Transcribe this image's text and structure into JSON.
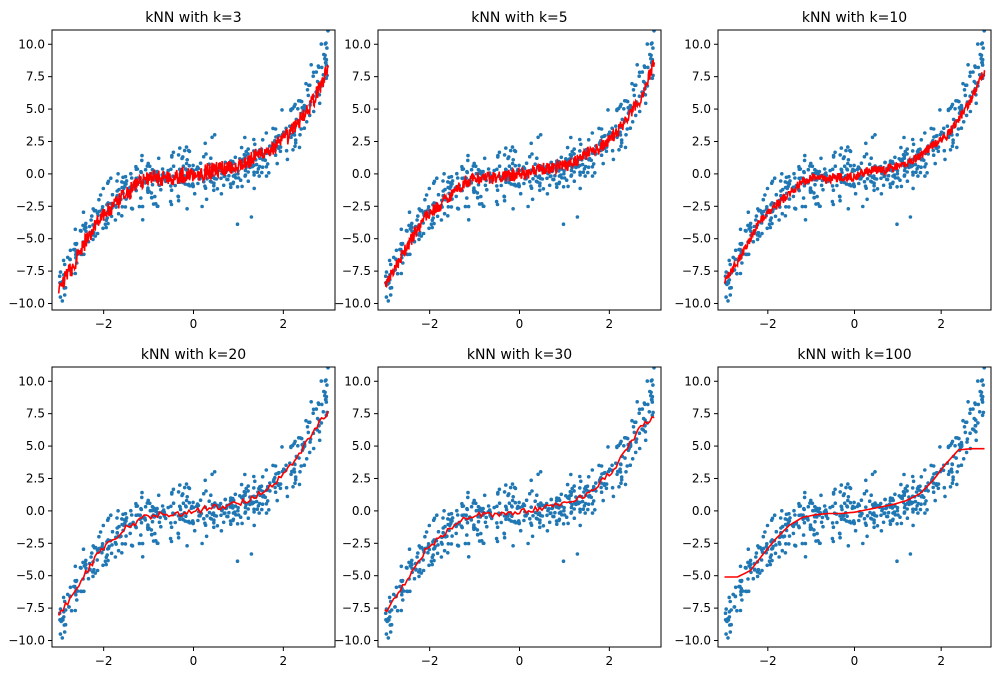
{
  "chart_data": [
    {
      "type": "scatter",
      "title": "kNN with k=3",
      "xlabel": "",
      "ylabel": "",
      "xlim": [
        -3.15,
        3.15
      ],
      "ylim": [
        -10.5,
        11.1
      ],
      "xticks": [
        -2,
        0,
        2
      ],
      "xtick_labels": [
        "−2",
        "0",
        "2"
      ],
      "yticks": [
        -10,
        -7.5,
        -5,
        -2.5,
        0,
        2.5,
        5,
        7.5,
        10
      ],
      "ytick_labels": [
        "−10.0",
        "−7.5",
        "−5.0",
        "−2.5",
        "0.0",
        "2.5",
        "5.0",
        "7.5",
        "10.0"
      ],
      "series": [
        {
          "role": "observations",
          "color": "#1f77b4",
          "points": "~500 noisy samples of y ≈ x^3/3 + noise, x ∈ [−3, 3]"
        },
        {
          "role": "prediction",
          "color": "#ff0000",
          "x": [
            -3.0,
            -2.7,
            -2.4,
            -2.1,
            -1.8,
            -1.5,
            -1.2,
            -0.9,
            -0.6,
            -0.3,
            0.0,
            0.3,
            0.6,
            0.9,
            1.2,
            1.5,
            1.8,
            2.1,
            2.4,
            2.7,
            3.0
          ],
          "y": [
            -8.8,
            -7.2,
            -5.2,
            -3.4,
            -2.6,
            -1.6,
            -0.6,
            -0.3,
            -0.3,
            -0.2,
            0.0,
            0.2,
            0.4,
            0.6,
            0.9,
            1.6,
            2.0,
            2.9,
            4.3,
            5.8,
            8.2
          ]
        }
      ]
    },
    {
      "type": "scatter",
      "title": "kNN with k=5",
      "xlabel": "",
      "ylabel": "",
      "xlim": [
        -3.15,
        3.15
      ],
      "ylim": [
        -10.5,
        11.1
      ],
      "xticks": [
        -2,
        0,
        2
      ],
      "xtick_labels": [
        "−2",
        "0",
        "2"
      ],
      "yticks": [
        -10,
        -7.5,
        -5,
        -2.5,
        0,
        2.5,
        5,
        7.5,
        10
      ],
      "ytick_labels": [
        "−10.0",
        "−7.5",
        "−5.0",
        "−2.5",
        "0.0",
        "2.5",
        "5.0",
        "7.5",
        "10.0"
      ],
      "series": [
        {
          "role": "observations",
          "color": "#1f77b4",
          "points": "same sample as above"
        },
        {
          "role": "prediction",
          "color": "#ff0000",
          "x": [
            -3.0,
            -2.7,
            -2.4,
            -2.1,
            -1.8,
            -1.5,
            -1.2,
            -0.9,
            -0.6,
            -0.3,
            0.0,
            0.3,
            0.6,
            0.9,
            1.2,
            1.5,
            1.8,
            2.1,
            2.4,
            2.7,
            3.0
          ],
          "y": [
            -8.5,
            -6.9,
            -5.0,
            -3.3,
            -2.5,
            -1.5,
            -0.6,
            -0.3,
            -0.3,
            -0.2,
            0.0,
            0.2,
            0.4,
            0.6,
            0.9,
            1.6,
            2.0,
            2.9,
            4.3,
            5.8,
            8.6
          ]
        }
      ]
    },
    {
      "type": "scatter",
      "title": "kNN with k=10",
      "xlabel": "",
      "ylabel": "",
      "xlim": [
        -3.15,
        3.15
      ],
      "ylim": [
        -10.5,
        11.1
      ],
      "xticks": [
        -2,
        0,
        2
      ],
      "xtick_labels": [
        "−2",
        "0",
        "2"
      ],
      "yticks": [
        -10,
        -7.5,
        -5,
        -2.5,
        0,
        2.5,
        5,
        7.5,
        10
      ],
      "ytick_labels": [
        "−10.0",
        "−7.5",
        "−5.0",
        "−2.5",
        "0.0",
        "2.5",
        "5.0",
        "7.5",
        "10.0"
      ],
      "series": [
        {
          "role": "observations",
          "color": "#1f77b4",
          "points": "same sample as above"
        },
        {
          "role": "prediction",
          "color": "#ff0000",
          "x": [
            -3.0,
            -2.7,
            -2.4,
            -2.1,
            -1.8,
            -1.5,
            -1.2,
            -0.9,
            -0.6,
            -0.3,
            0.0,
            0.3,
            0.6,
            0.9,
            1.2,
            1.5,
            1.8,
            2.1,
            2.4,
            2.7,
            3.0
          ],
          "y": [
            -8.2,
            -6.8,
            -4.9,
            -3.2,
            -2.4,
            -1.5,
            -0.6,
            -0.2,
            -0.4,
            -0.2,
            -0.2,
            0.2,
            0.3,
            0.5,
            0.8,
            1.4,
            2.2,
            2.8,
            4.2,
            5.8,
            8.0
          ]
        }
      ]
    },
    {
      "type": "scatter",
      "title": "kNN with k=20",
      "xlabel": "",
      "ylabel": "",
      "xlim": [
        -3.15,
        3.15
      ],
      "ylim": [
        -10.5,
        11.1
      ],
      "xticks": [
        -2,
        0,
        2
      ],
      "xtick_labels": [
        "−2",
        "0",
        "2"
      ],
      "yticks": [
        -10,
        -7.5,
        -5,
        -2.5,
        0,
        2.5,
        5,
        7.5,
        10
      ],
      "ytick_labels": [
        "−10.0",
        "−7.5",
        "−5.0",
        "−2.5",
        "0.0",
        "2.5",
        "5.0",
        "7.5",
        "10.0"
      ],
      "series": [
        {
          "role": "observations",
          "color": "#1f77b4",
          "points": "same sample as above"
        },
        {
          "role": "prediction",
          "color": "#ff0000",
          "x": [
            -3.0,
            -2.7,
            -2.4,
            -2.1,
            -1.8,
            -1.5,
            -1.2,
            -0.9,
            -0.6,
            -0.3,
            0.0,
            0.3,
            0.6,
            0.9,
            1.2,
            1.5,
            1.8,
            2.1,
            2.4,
            2.7,
            3.0
          ],
          "y": [
            -8.0,
            -6.6,
            -4.8,
            -3.2,
            -2.2,
            -1.3,
            -0.7,
            -0.3,
            -0.3,
            -0.2,
            -0.1,
            0.2,
            0.3,
            0.5,
            0.8,
            1.4,
            2.1,
            3.2,
            4.7,
            6.3,
            7.7
          ]
        }
      ]
    },
    {
      "type": "scatter",
      "title": "kNN with k=30",
      "xlabel": "",
      "ylabel": "",
      "xlim": [
        -3.15,
        3.15
      ],
      "ylim": [
        -10.5,
        11.1
      ],
      "xticks": [
        -2,
        0,
        2
      ],
      "xtick_labels": [
        "−2",
        "0",
        "2"
      ],
      "yticks": [
        -10,
        -7.5,
        -5,
        -2.5,
        0,
        2.5,
        5,
        7.5,
        10
      ],
      "ytick_labels": [
        "−10.0",
        "−7.5",
        "−5.0",
        "−2.5",
        "0.0",
        "2.5",
        "5.0",
        "7.5",
        "10.0"
      ],
      "series": [
        {
          "role": "observations",
          "color": "#1f77b4",
          "points": "same sample as above"
        },
        {
          "role": "prediction",
          "color": "#ff0000",
          "x": [
            -3.0,
            -2.7,
            -2.4,
            -2.1,
            -1.8,
            -1.5,
            -1.2,
            -0.9,
            -0.6,
            -0.3,
            0.0,
            0.3,
            0.6,
            0.9,
            1.2,
            1.5,
            1.8,
            2.1,
            2.4,
            2.7,
            3.0
          ],
          "y": [
            -7.8,
            -6.4,
            -4.7,
            -3.1,
            -2.1,
            -1.2,
            -0.6,
            -0.3,
            -0.3,
            -0.2,
            -0.1,
            0.1,
            0.3,
            0.5,
            0.8,
            1.3,
            2.2,
            3.2,
            4.8,
            6.5,
            7.2
          ]
        }
      ]
    },
    {
      "type": "scatter",
      "title": "kNN with k=100",
      "xlabel": "",
      "ylabel": "",
      "xlim": [
        -3.15,
        3.15
      ],
      "ylim": [
        -10.5,
        11.1
      ],
      "xticks": [
        -2,
        0,
        2
      ],
      "xtick_labels": [
        "−2",
        "0",
        "2"
      ],
      "yticks": [
        -10,
        -7.5,
        -5,
        -2.5,
        0,
        2.5,
        5,
        7.5,
        10
      ],
      "ytick_labels": [
        "−10.0",
        "−7.5",
        "−5.0",
        "−2.5",
        "0.0",
        "2.5",
        "5.0",
        "7.5",
        "10.0"
      ],
      "series": [
        {
          "role": "observations",
          "color": "#1f77b4",
          "points": "same sample as above"
        },
        {
          "role": "prediction",
          "color": "#ff0000",
          "x": [
            -3.0,
            -2.7,
            -2.4,
            -2.1,
            -1.8,
            -1.5,
            -1.2,
            -0.9,
            -0.6,
            -0.3,
            0.0,
            0.3,
            0.6,
            0.9,
            1.2,
            1.5,
            1.8,
            2.1,
            2.4,
            2.7,
            3.0
          ],
          "y": [
            -5.1,
            -5.1,
            -4.6,
            -3.3,
            -2.1,
            -1.1,
            -0.5,
            -0.3,
            -0.2,
            -0.2,
            -0.1,
            0.1,
            0.3,
            0.5,
            0.8,
            1.3,
            2.3,
            3.6,
            4.7,
            4.8,
            4.8
          ]
        }
      ]
    }
  ]
}
